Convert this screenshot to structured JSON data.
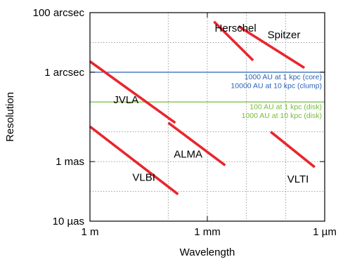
{
  "chart_data": {
    "type": "line",
    "xlabel": "Wavelength",
    "ylabel": "Resolution",
    "x_scale": "log",
    "y_scale": "log",
    "xlim_m": [
      1,
      1e-06
    ],
    "ylim_arcsec": [
      1e-05,
      100
    ],
    "grid": true,
    "x_ticks": [
      {
        "value_m": 1,
        "label": "1 m"
      },
      {
        "value_m": 0.001,
        "label": "1 mm"
      },
      {
        "value_m": 1e-06,
        "label": "1 µm"
      }
    ],
    "y_ticks": [
      {
        "value_arcsec": 100,
        "label": "100 arcsec"
      },
      {
        "value_arcsec": 1,
        "label": "1 arcsec"
      },
      {
        "value_arcsec": 0.001,
        "label": "1 mas"
      },
      {
        "value_arcsec": 1e-05,
        "label": "10 µas"
      }
    ],
    "series": [
      {
        "name": "Herschel",
        "color": "#e8262d",
        "x": [
          0.000676,
          6.76e-05
        ],
        "y": [
          50,
          2.5
        ]
      },
      {
        "name": "Spitzer",
        "color": "#e8262d",
        "x": [
          0.00016,
          3.3e-06
        ],
        "y": [
          35,
          1.4
        ]
      },
      {
        "name": "JVLA",
        "color": "#e8262d",
        "x": [
          1,
          0.0066
        ],
        "y": [
          2.3,
          0.02
        ]
      },
      {
        "name": "ALMA",
        "color": "#e8262d",
        "x": [
          0.0099,
          0.00035
        ],
        "y": [
          0.02,
          0.00075
        ]
      },
      {
        "name": "VLBI",
        "color": "#e8262d",
        "x": [
          1,
          0.0056
        ],
        "y": [
          0.015,
          8e-05
        ]
      },
      {
        "name": "VLTI",
        "color": "#e8262d",
        "x": [
          2.4e-05,
          1.8e-06
        ],
        "y": [
          0.01,
          0.00065
        ]
      }
    ],
    "reference_lines": [
      {
        "y_arcsec": 1,
        "color": "#2a63b8",
        "labels": [
          "1000 AU at 1 kpc (core)",
          "10000 AU at 10 kpc (clump)"
        ]
      },
      {
        "y_arcsec": 0.1,
        "color": "#74bd3a",
        "labels": [
          "100 AU at 1 kpc (disk)",
          "1000 AU at 10 kpc (disk)"
        ]
      }
    ],
    "minor_grid_x_m": [
      0.01,
      0.0001,
      1e-05
    ],
    "minor_grid_y_arcsec": [
      10,
      0.01,
      0.0001
    ]
  }
}
